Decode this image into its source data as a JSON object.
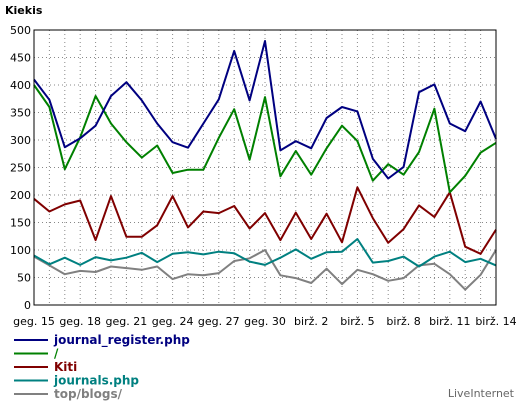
{
  "chart_data": {
    "type": "line",
    "ylabel": "Kiekis",
    "ylim": [
      0,
      500
    ],
    "yticks": [
      0,
      50,
      100,
      150,
      200,
      250,
      300,
      350,
      400,
      450,
      500
    ],
    "x": [
      "geg. 15",
      "geg. 16",
      "geg. 17",
      "geg. 18",
      "geg. 19",
      "geg. 20",
      "geg. 21",
      "geg. 22",
      "geg. 23",
      "geg. 24",
      "geg. 25",
      "geg. 26",
      "geg. 27",
      "geg. 28",
      "geg. 29",
      "geg. 30",
      "geg. 31",
      "birž. 1",
      "birž. 2",
      "birž. 3",
      "birž. 4",
      "birž. 5",
      "birž. 6",
      "birž. 7",
      "birž. 8",
      "birž. 9",
      "birž. 10",
      "birž. 11",
      "birž. 12",
      "birž. 13",
      "birž. 14"
    ],
    "tick_labels": [
      "geg. 15",
      "geg. 18",
      "geg. 21",
      "geg. 24",
      "geg. 27",
      "geg. 30",
      "birž. 2",
      "birž. 5",
      "birž. 8",
      "birž. 11",
      "birž. 14"
    ],
    "grid": true,
    "legend_position": "bottom-left",
    "series": [
      {
        "name": "journal_register.php",
        "color": "#000080",
        "values": [
          410,
          373,
          287,
          303,
          326,
          380,
          405,
          372,
          330,
          296,
          286,
          330,
          374,
          462,
          372,
          480,
          281,
          298,
          285,
          340,
          360,
          352,
          266,
          230,
          251,
          387,
          401,
          330,
          316,
          370,
          302
        ]
      },
      {
        "name": "/",
        "color": "#008000",
        "values": [
          400,
          360,
          247,
          305,
          380,
          330,
          296,
          268,
          290,
          240,
          246,
          246,
          304,
          356,
          264,
          378,
          234,
          280,
          237,
          285,
          326,
          298,
          226,
          256,
          237,
          278,
          357,
          205,
          235,
          277,
          295
        ]
      },
      {
        "name": "Kiti",
        "color": "#800000",
        "values": [
          193,
          170,
          183,
          190,
          118,
          198,
          124,
          124,
          145,
          198,
          141,
          170,
          167,
          180,
          139,
          167,
          118,
          168,
          120,
          166,
          114,
          214,
          158,
          113,
          138,
          181,
          160,
          205,
          106,
          93,
          137
        ]
      },
      {
        "name": "journals.php",
        "color": "#008080",
        "values": [
          90,
          74,
          86,
          73,
          87,
          81,
          86,
          95,
          78,
          93,
          96,
          92,
          97,
          94,
          79,
          73,
          86,
          101,
          84,
          96,
          97,
          120,
          77,
          80,
          88,
          70,
          88,
          97,
          78,
          84,
          72
        ]
      },
      {
        "name": "top/blogs/",
        "color": "#808080",
        "values": [
          88,
          72,
          56,
          62,
          60,
          70,
          67,
          64,
          70,
          47,
          56,
          54,
          58,
          80,
          85,
          100,
          54,
          49,
          40,
          66,
          38,
          64,
          56,
          44,
          49,
          72,
          75,
          56,
          28,
          55,
          100
        ]
      }
    ]
  },
  "credit": "LiveInternet"
}
